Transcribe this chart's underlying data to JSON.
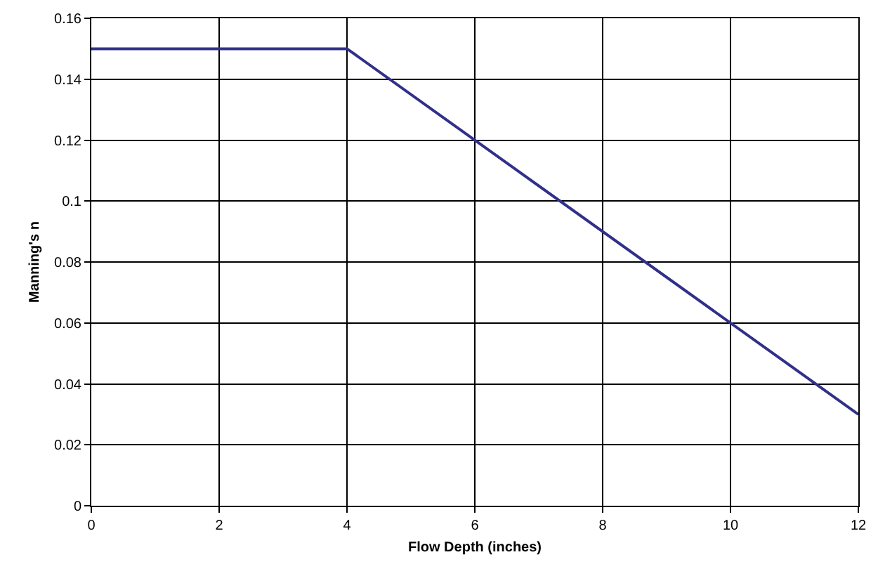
{
  "chart_data": {
    "type": "line",
    "xlabel": "Flow Depth (inches)",
    "ylabel": "Manning's n",
    "x": [
      0,
      4,
      12
    ],
    "series": [
      {
        "color": "#30308a",
        "values": [
          0.15,
          0.15,
          0.03
        ]
      }
    ],
    "xlim": [
      0,
      12
    ],
    "xticks": [
      0,
      2,
      4,
      6,
      8,
      10,
      12
    ],
    "ylim": [
      0,
      0.16
    ],
    "yticks": [
      0,
      0.02,
      0.04,
      0.06,
      0.08,
      0.1,
      0.12,
      0.14,
      0.16
    ],
    "grid": true,
    "marker": "none",
    "line_style": "solid"
  }
}
